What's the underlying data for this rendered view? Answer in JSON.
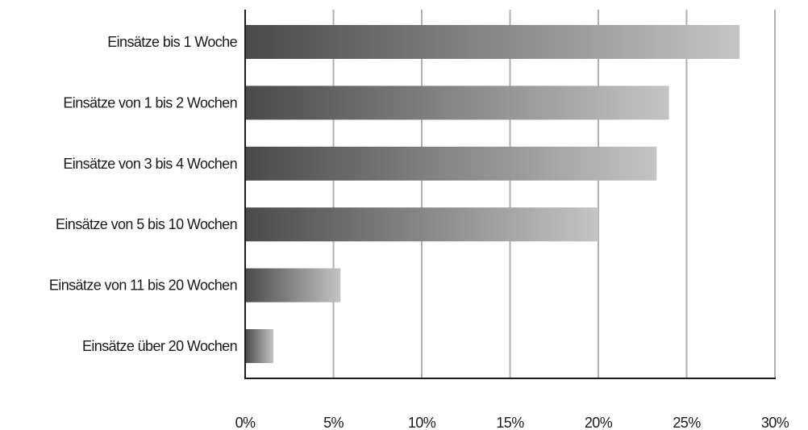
{
  "chart_data": {
    "type": "bar",
    "orientation": "horizontal",
    "categories": [
      "Einsätze bis 1 Woche",
      "Einsätze von 1 bis 2 Wochen",
      "Einsätze von 3 bis 4 Wochen",
      "Einsätze von 5 bis 10 Wochen",
      "Einsätze von 11 bis 20 Wochen",
      "Einsätze über 20 Wochen"
    ],
    "values": [
      28.0,
      24.0,
      23.3,
      20.0,
      5.4,
      1.6
    ],
    "title": "",
    "xlabel": "",
    "ylabel": "",
    "xlim": [
      0,
      30
    ],
    "x_ticks": [
      0,
      5,
      10,
      15,
      20,
      25,
      30
    ],
    "x_tick_labels": [
      "0%",
      "5%",
      "10%",
      "15%",
      "20%",
      "25%",
      "30%"
    ],
    "grid": "vertical",
    "legend": "none",
    "bar_gradient": [
      "#4a4a4a",
      "#c4c4c4"
    ]
  }
}
